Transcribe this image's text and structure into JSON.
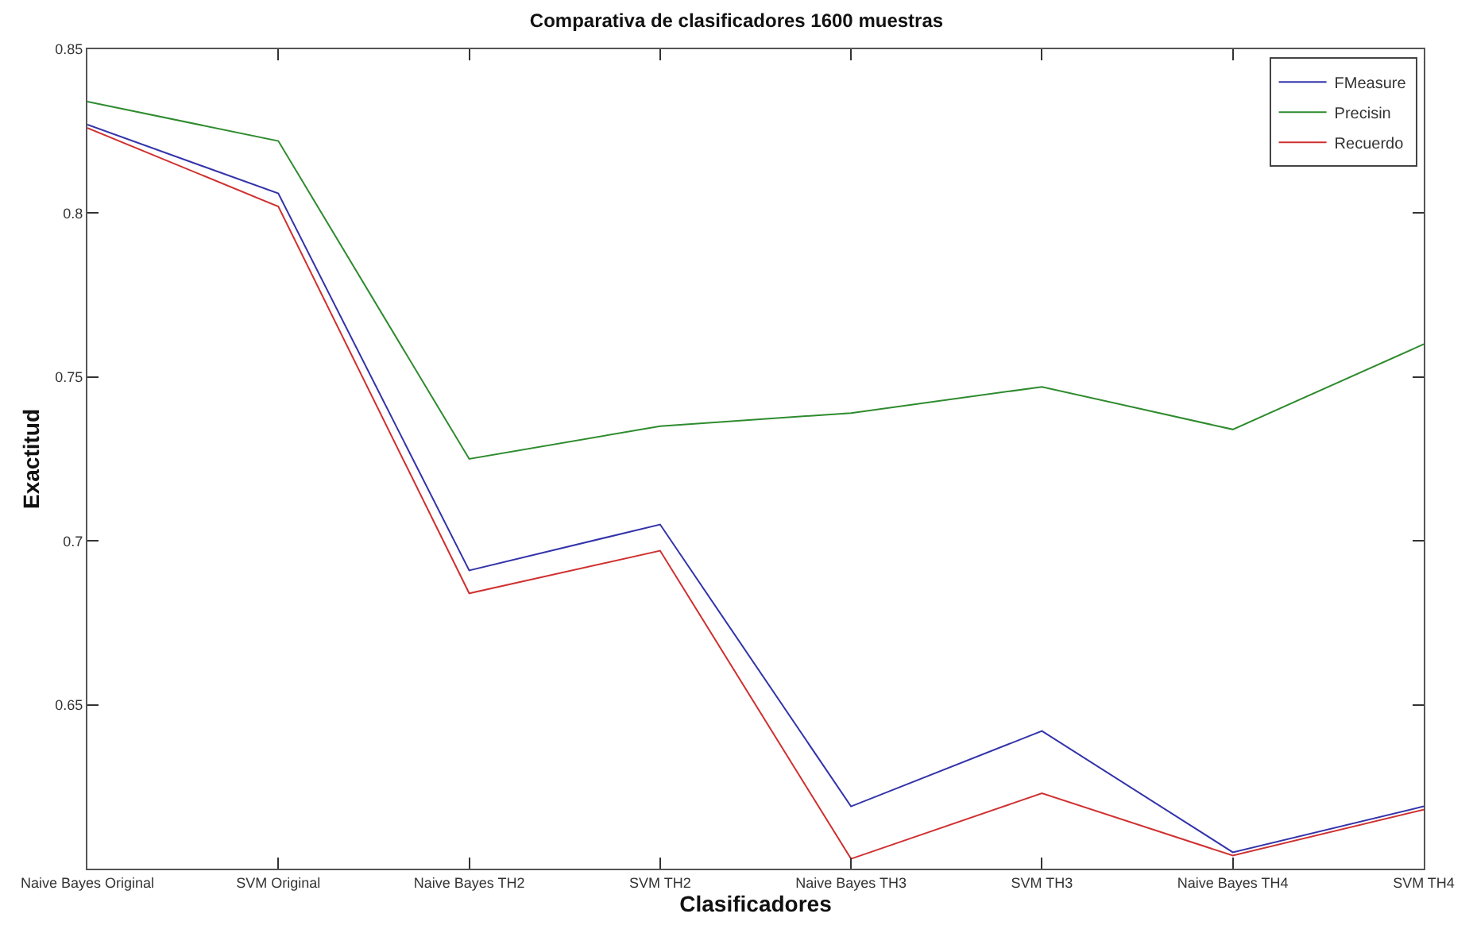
{
  "chart_data": {
    "type": "line",
    "title": "Comparativa de clasificadores 1600 muestras",
    "xlabel": "Clasificadores",
    "ylabel": "Exactitud",
    "categories": [
      "Naive Bayes Original",
      "SVM Original",
      "Naive Bayes TH2",
      "SVM TH2",
      "Naive Bayes TH3",
      "SVM TH3",
      "Naive Bayes TH4",
      "SVM TH4"
    ],
    "series": [
      {
        "name": "FMeasure",
        "color": "#3333aa",
        "values": [
          0.827,
          0.806,
          0.691,
          0.705,
          0.619,
          0.642,
          0.605,
          0.619
        ]
      },
      {
        "name": "Precisin",
        "color": "#2e8b2e",
        "values": [
          0.834,
          0.822,
          0.725,
          0.735,
          0.739,
          0.747,
          0.734,
          0.76
        ]
      },
      {
        "name": "Recuerdo",
        "color": "#d03030",
        "values": [
          0.826,
          0.802,
          0.684,
          0.697,
          0.603,
          0.623,
          0.604,
          0.618
        ]
      }
    ],
    "ylim": [
      0.6,
      0.85
    ],
    "yticks": [
      0.65,
      0.7,
      0.75,
      0.8,
      0.85
    ],
    "legend": "top right",
    "marker": "none",
    "line_style": "solid"
  }
}
